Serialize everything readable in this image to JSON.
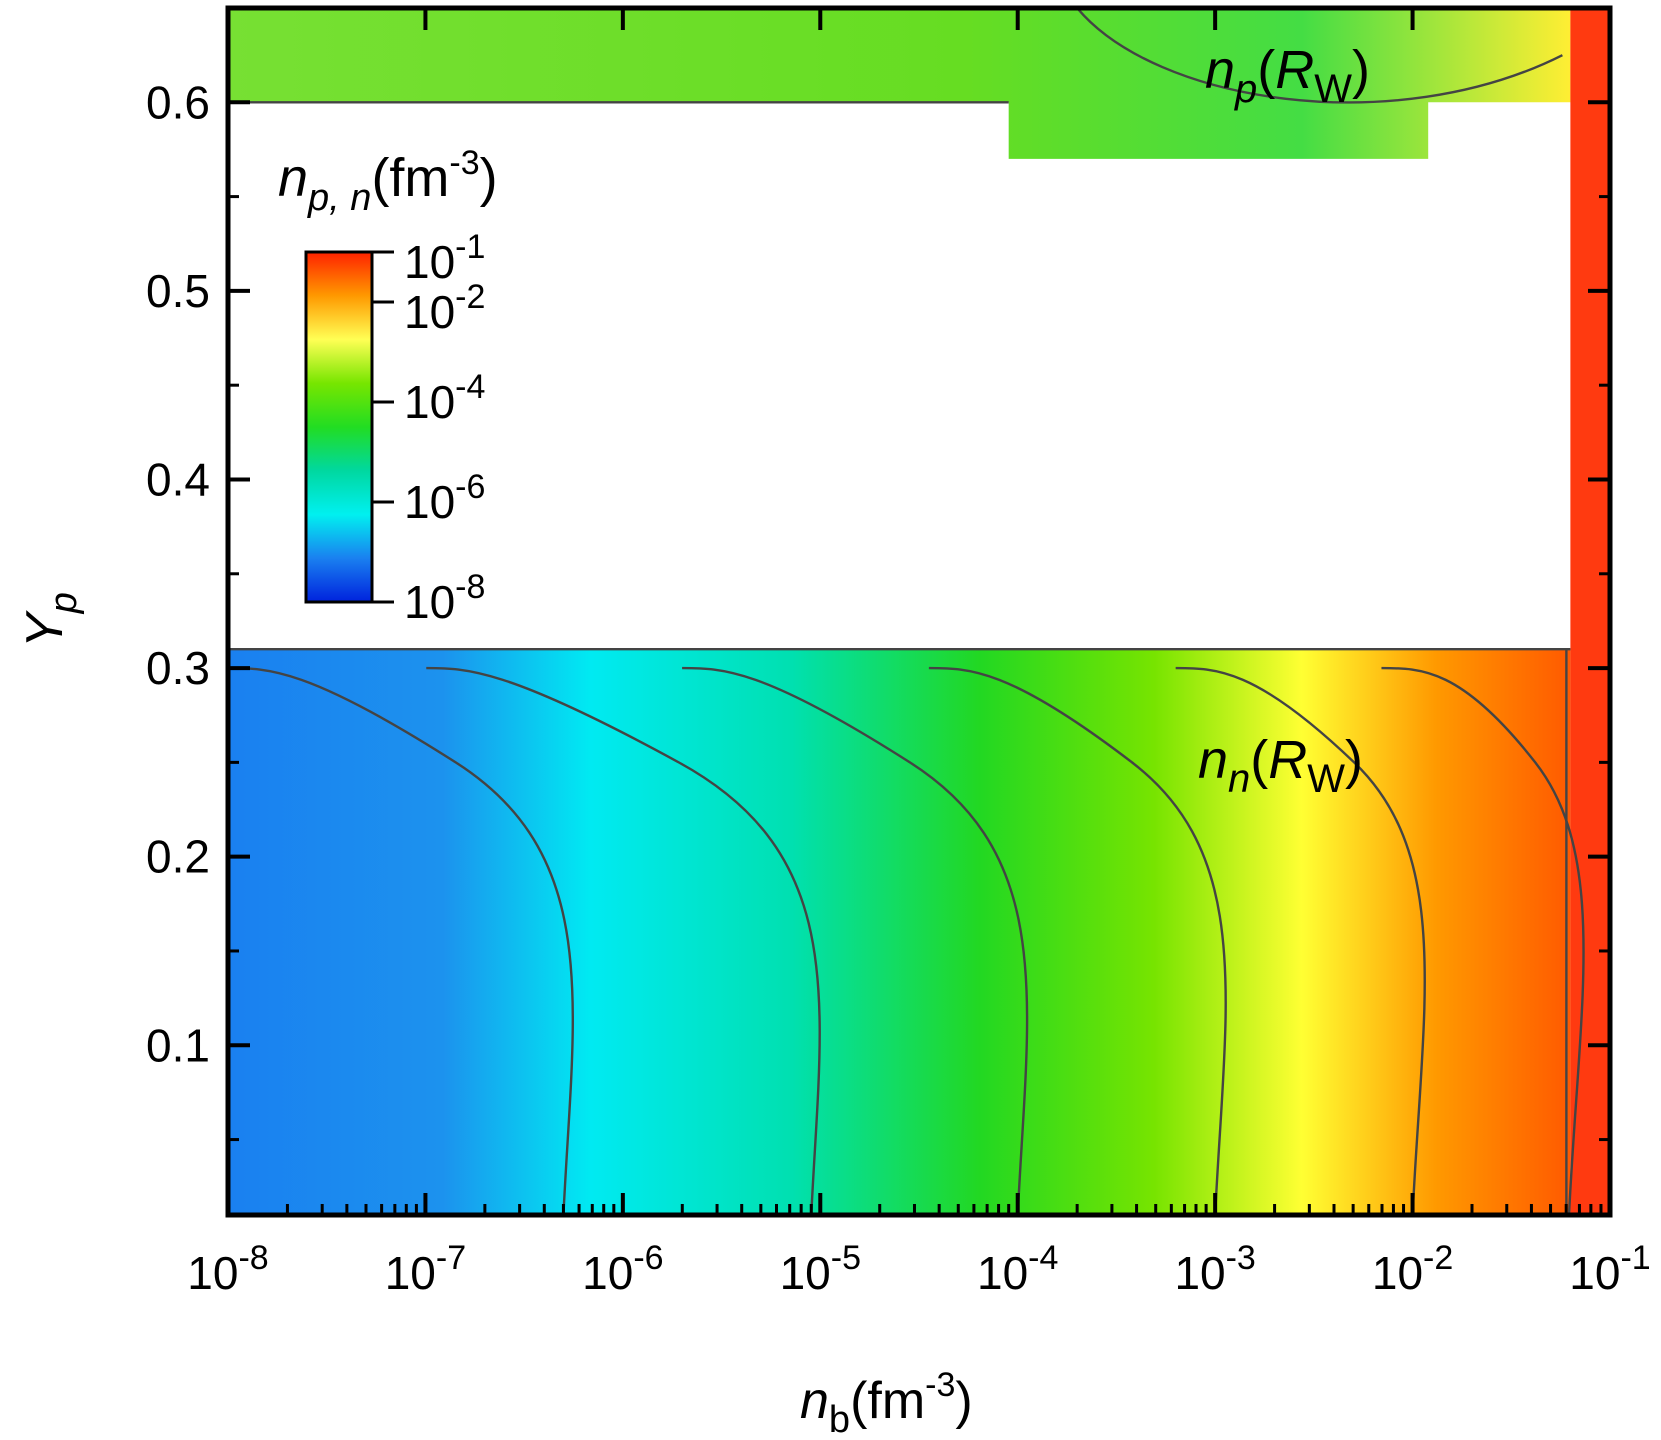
{
  "chart_data": {
    "type": "heatmap",
    "title": "",
    "xlabel": {
      "main": "n",
      "sub": "b",
      "unit": "(fm",
      "sup": "-3",
      "close": ")"
    },
    "ylabel": {
      "main": "Y",
      "sub": "p"
    },
    "x_scale": "log",
    "xlim": [
      1e-08,
      0.1
    ],
    "ylim": [
      0.01,
      0.65
    ],
    "x_ticks": [
      {
        "value": 1e-08,
        "base": "10",
        "exp": "-8"
      },
      {
        "value": 1e-07,
        "base": "10",
        "exp": "-7"
      },
      {
        "value": 1e-06,
        "base": "10",
        "exp": "-6"
      },
      {
        "value": 1e-05,
        "base": "10",
        "exp": "-5"
      },
      {
        "value": 0.0001,
        "base": "10",
        "exp": "-4"
      },
      {
        "value": 0.001,
        "base": "10",
        "exp": "-3"
      },
      {
        "value": 0.01,
        "base": "10",
        "exp": "-2"
      },
      {
        "value": 0.1,
        "base": "10",
        "exp": "-1"
      }
    ],
    "y_ticks": [
      {
        "value": 0.1,
        "label": "0.1"
      },
      {
        "value": 0.2,
        "label": "0.2"
      },
      {
        "value": 0.3,
        "label": "0.3"
      },
      {
        "value": 0.4,
        "label": "0.4"
      },
      {
        "value": 0.5,
        "label": "0.5"
      },
      {
        "value": 0.6,
        "label": "0.6"
      }
    ],
    "colorbar": {
      "title": {
        "main": "n",
        "sub": "p, n",
        "unit": "(fm",
        "sup": "-3",
        "close": ")"
      },
      "scale": "log",
      "range": [
        1e-08,
        0.1
      ],
      "ticks": [
        {
          "value": 0.1,
          "base": "10",
          "exp": "-1"
        },
        {
          "value": 0.01,
          "base": "10",
          "exp": "-2"
        },
        {
          "value": 0.0001,
          "base": "10",
          "exp": "-4"
        },
        {
          "value": 1e-06,
          "base": "10",
          "exp": "-6"
        },
        {
          "value": 1e-08,
          "base": "10",
          "exp": "-8"
        }
      ],
      "colors": [
        "#0022dd",
        "#1a80f0",
        "#00f0f0",
        "#00d8a0",
        "#22dd22",
        "#77e600",
        "#ffff55",
        "#ff9900",
        "#ff2200"
      ]
    },
    "regions": [
      {
        "name_main": "n",
        "name_sub": "n",
        "name_arg": "R",
        "name_arg_sub": "W",
        "y_range": [
          0.01,
          0.31
        ],
        "annotation_at": {
          "x": 0.0025,
          "y": 0.255
        }
      },
      {
        "name_main": "n",
        "name_sub": "p",
        "name_arg": "R",
        "name_arg_sub": "W",
        "y_range": [
          0.57,
          0.65
        ],
        "annotation_at": {
          "x": 0.0016,
          "y": 0.61
        }
      }
    ],
    "contour_levels": [
      1e-07,
      1e-06,
      1e-05,
      0.0001,
      0.001,
      0.01
    ],
    "lower_contours_nb_at_y_min": [
      {
        "level": 1e-07,
        "x": 5e-07
      },
      {
        "level": 1e-06,
        "x": 9e-06
      },
      {
        "level": 1e-05,
        "x": 0.0001
      },
      {
        "level": 0.0001,
        "x": 0.001
      },
      {
        "level": 0.001,
        "x": 0.01
      },
      {
        "level": 0.01,
        "x": 0.062
      }
    ],
    "boundary_nb": 0.063
  }
}
